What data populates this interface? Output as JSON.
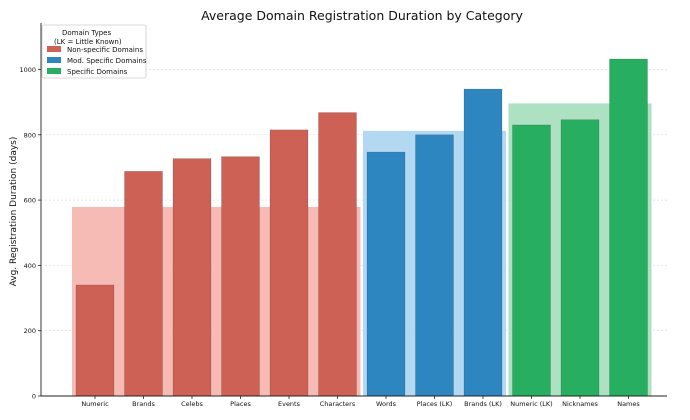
{
  "chart_data": {
    "type": "bar",
    "title": "Average Domain Registration Duration by Category",
    "xlabel": "",
    "ylabel": "Avg. Registration Duration (days)",
    "ylim": [
      0,
      1130
    ],
    "yticks": [
      0,
      200,
      400,
      600,
      800,
      1000
    ],
    "grid": "horizontal dotted",
    "legend_placement": "top-left",
    "legend": {
      "title_line1": "Domain Types",
      "title_line2": "(LK = Little Known)",
      "entries": [
        {
          "label": "Non-specific Domains",
          "color": "#cd6155"
        },
        {
          "label": "Mod. Specific Domains",
          "color": "#2e86c1"
        },
        {
          "label": "Specific Domains",
          "color": "#27ae60"
        }
      ]
    },
    "categories": [
      "Numeric",
      "Brands",
      "Celebs",
      "Places",
      "Events",
      "Characters",
      "Words",
      "Places (LK)",
      "Brands (LK)",
      "Numeric (LK)",
      "Nicknames",
      "Names"
    ],
    "values": [
      340,
      688,
      727,
      733,
      815,
      868,
      747,
      800,
      940,
      830,
      846,
      1032
    ],
    "groups": [
      "Non-specific Domains",
      "Non-specific Domains",
      "Non-specific Domains",
      "Non-specific Domains",
      "Non-specific Domains",
      "Non-specific Domains",
      "Mod. Specific Domains",
      "Mod. Specific Domains",
      "Mod. Specific Domains",
      "Specific Domains",
      "Specific Domains",
      "Specific Domains"
    ],
    "group_means": [
      {
        "group": "Non-specific Domains",
        "value": 579,
        "color": "#f5b7b1"
      },
      {
        "group": "Mod. Specific Domains",
        "value": 812,
        "color": "#aed6f1"
      },
      {
        "group": "Specific Domains",
        "value": 896,
        "color": "#a9dfbf"
      }
    ],
    "colors": {
      "Non-specific Domains": "#cd6155",
      "Mod. Specific Domains": "#2e86c1",
      "Specific Domains": "#27ae60"
    }
  }
}
